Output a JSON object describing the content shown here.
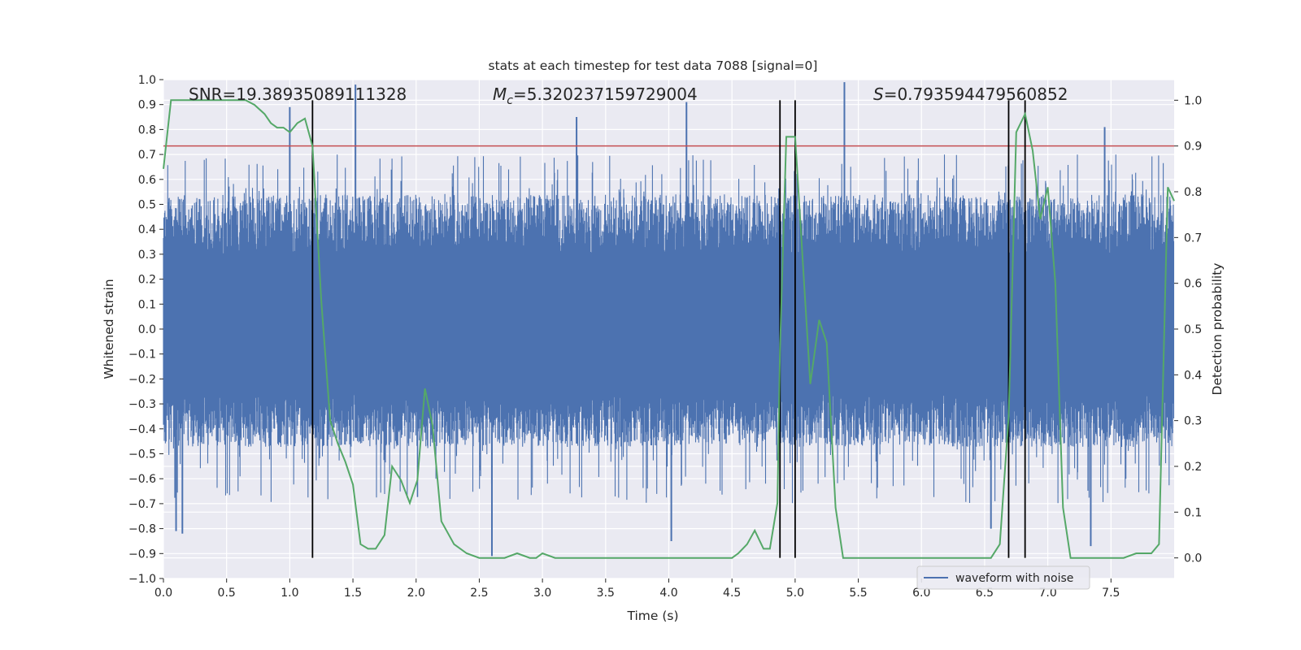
{
  "chart_data": {
    "type": "line",
    "title": "stats at each timestep for test data 7088 [signal=0]",
    "xlabel": "Time (s)",
    "ylabel_left": "Whitened strain",
    "ylabel_right": "Detection probability",
    "xlim": [
      0,
      8
    ],
    "ylim_left": [
      -1.0,
      1.0
    ],
    "ylim_right": [
      -0.045,
      1.045
    ],
    "x_ticks": [
      "0.0",
      "0.5",
      "1.0",
      "1.5",
      "2.0",
      "2.5",
      "3.0",
      "3.5",
      "4.0",
      "4.5",
      "5.0",
      "5.5",
      "6.0",
      "6.5",
      "7.0",
      "7.5"
    ],
    "y_ticks_left": [
      "1.0",
      "0.9",
      "0.8",
      "0.7",
      "0.6",
      "0.5",
      "0.4",
      "0.3",
      "0.2",
      "0.1",
      "0.0",
      "-0.1",
      "-0.2",
      "-0.3",
      "-0.4",
      "-0.5",
      "-0.6",
      "-0.7",
      "-0.8",
      "-0.9",
      "-1.0"
    ],
    "y_ticks_right": [
      "1.0",
      "0.9",
      "0.8",
      "0.7",
      "0.6",
      "0.5",
      "0.4",
      "0.3",
      "0.2",
      "0.1",
      "0.0"
    ],
    "annotations": {
      "snr": "SNR=19.38935089111328",
      "mc_symbol": "M",
      "mc_sub": "c",
      "mc_value": "=5.320237159729004",
      "s_symbol": "S",
      "s_value": "=0.793594479560852"
    },
    "threshold_probability": 0.9,
    "vertical_lines_time": [
      1.18,
      4.88,
      5.0,
      6.69,
      6.82
    ],
    "legend": {
      "label": "waveform with noise",
      "placement": "lower right"
    },
    "grid": true,
    "colors": {
      "waveform": "#4c72b0",
      "probability": "#55a868",
      "threshold": "#c44e52",
      "markers": "#000000",
      "plot_background": "#eaeaf2",
      "grid": "#ffffff"
    },
    "series": [
      {
        "name": "waveform with noise",
        "axis": "left",
        "style": "dense noise signal",
        "noise_band": [
          -0.35,
          0.4
        ],
        "spikes": [
          {
            "x": 1.0,
            "y": 0.89
          },
          {
            "x": 1.52,
            "y": 0.98
          },
          {
            "x": 3.27,
            "y": 0.85
          },
          {
            "x": 4.14,
            "y": 0.91
          },
          {
            "x": 5.39,
            "y": 0.99
          },
          {
            "x": 7.45,
            "y": 0.81
          },
          {
            "x": 0.1,
            "y": -0.81
          },
          {
            "x": 0.15,
            "y": -0.82
          },
          {
            "x": 2.6,
            "y": -0.91
          },
          {
            "x": 4.02,
            "y": -0.85
          },
          {
            "x": 7.34,
            "y": -0.87
          },
          {
            "x": 6.55,
            "y": -0.8
          }
        ]
      },
      {
        "name": "",
        "axis": "right",
        "x": [
          0.0,
          0.06,
          0.15,
          0.3,
          0.5,
          0.65,
          0.72,
          0.8,
          0.85,
          0.9,
          0.95,
          1.0,
          1.06,
          1.12,
          1.18,
          1.25,
          1.32,
          1.38,
          1.44,
          1.5,
          1.56,
          1.62,
          1.68,
          1.75,
          1.81,
          1.88,
          1.95,
          2.01,
          2.07,
          2.13,
          2.2,
          2.3,
          2.4,
          2.5,
          2.6,
          2.7,
          2.8,
          2.9,
          2.95,
          3.0,
          3.1,
          3.3,
          3.5,
          3.7,
          4.0,
          4.3,
          4.5,
          4.55,
          4.62,
          4.68,
          4.75,
          4.8,
          4.86,
          4.88,
          4.93,
          5.0,
          5.06,
          5.12,
          5.19,
          5.25,
          5.32,
          5.38,
          5.5,
          5.8,
          6.2,
          6.4,
          6.5,
          6.55,
          6.62,
          6.69,
          6.75,
          6.82,
          6.88,
          6.94,
          7.0,
          7.06,
          7.12,
          7.18,
          7.3,
          7.5,
          7.6,
          7.7,
          7.75,
          7.82,
          7.88,
          7.95,
          8.0
        ],
        "y": [
          0.85,
          1.0,
          1.0,
          1.0,
          1.0,
          1.0,
          0.99,
          0.97,
          0.95,
          0.94,
          0.94,
          0.93,
          0.95,
          0.96,
          0.9,
          0.56,
          0.3,
          0.25,
          0.21,
          0.16,
          0.03,
          0.02,
          0.02,
          0.05,
          0.2,
          0.17,
          0.12,
          0.17,
          0.37,
          0.29,
          0.08,
          0.03,
          0.01,
          0.0,
          0.0,
          0.0,
          0.01,
          0.0,
          0.0,
          0.01,
          0.0,
          0.0,
          0.0,
          0.0,
          0.0,
          0.0,
          0.0,
          0.01,
          0.03,
          0.06,
          0.02,
          0.02,
          0.12,
          0.45,
          0.92,
          0.92,
          0.65,
          0.38,
          0.52,
          0.47,
          0.11,
          0.0,
          0.0,
          0.0,
          0.0,
          0.0,
          0.0,
          0.0,
          0.03,
          0.31,
          0.93,
          0.97,
          0.89,
          0.74,
          0.81,
          0.6,
          0.11,
          0.0,
          0.0,
          0.0,
          0.0,
          0.01,
          0.01,
          0.01,
          0.03,
          0.81,
          0.78
        ]
      }
    ]
  }
}
